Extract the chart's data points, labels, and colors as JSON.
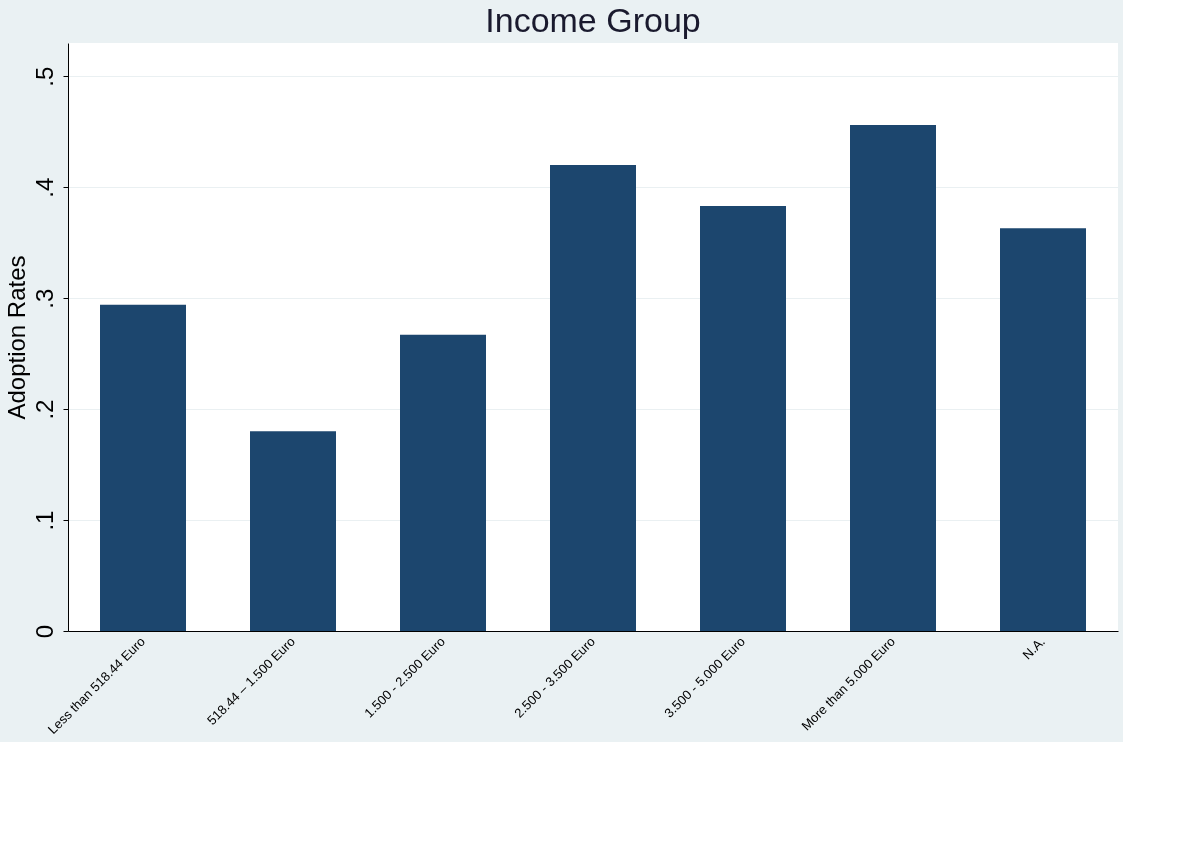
{
  "chart_data": {
    "type": "bar",
    "title": "Income Group",
    "ylabel": "Adoption Rates",
    "categories": [
      "Less than 518.44 Euro",
      "518.44 – 1.500 Euro",
      "1.500 - 2.500 Euro",
      "2.500 - 3.500 Euro",
      "3.500 - 5.000 Euro",
      "More than 5.000 Euro",
      "N.A."
    ],
    "values": [
      0.294,
      0.18,
      0.267,
      0.42,
      0.383,
      0.456,
      0.363
    ],
    "color": "#1c466e",
    "ylim": [
      0,
      0.53
    ],
    "yticks": [
      0,
      {
        "value": 0.1,
        "label": ".1"
      },
      {
        "value": 0.2,
        "label": ".2"
      },
      {
        "value": 0.3,
        "label": ".3"
      },
      {
        "value": 0.4,
        "label": ".4"
      },
      {
        "value": 0.5,
        "label": ".5"
      }
    ],
    "grid": "y"
  }
}
